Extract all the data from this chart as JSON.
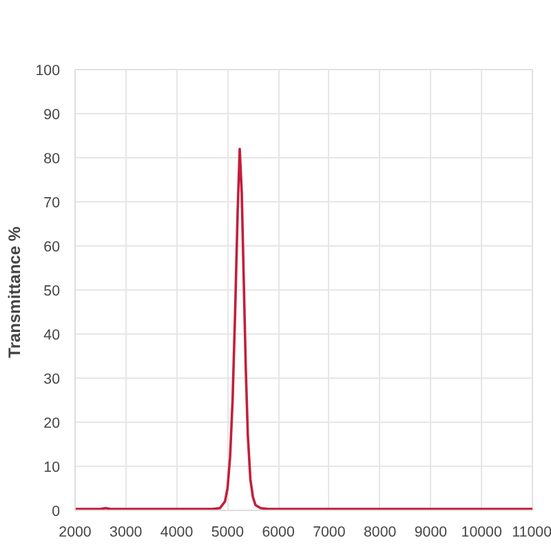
{
  "chart_data": {
    "type": "line",
    "ylabel": "Transmittance  %",
    "xlim": [
      2000,
      11000
    ],
    "xticks": [
      2000,
      3000,
      4000,
      5000,
      6000,
      7000,
      8000,
      9000,
      10000,
      11000
    ],
    "ylim": [
      0,
      100
    ],
    "yticks": [
      0,
      10,
      20,
      30,
      40,
      50,
      60,
      70,
      80,
      90,
      100
    ],
    "grid": true,
    "marker": "none",
    "line_style": "solid",
    "series": [
      {
        "color": "#c41e3a",
        "x": [
          2000,
          2500,
          2600,
          2700,
          3500,
          4500,
          4700,
          4850,
          4950,
          5000,
          5050,
          5100,
          5150,
          5200,
          5240,
          5280,
          5320,
          5360,
          5400,
          5450,
          5500,
          5550,
          5650,
          5800,
          6500,
          8000,
          9500,
          11000
        ],
        "values": [
          0.3,
          0.3,
          0.5,
          0.3,
          0.3,
          0.3,
          0.3,
          0.5,
          2,
          5,
          12,
          25,
          45,
          68,
          82,
          72,
          52,
          32,
          17,
          7,
          3,
          1.2,
          0.5,
          0.3,
          0.3,
          0.3,
          0.3,
          0.3
        ]
      }
    ]
  }
}
